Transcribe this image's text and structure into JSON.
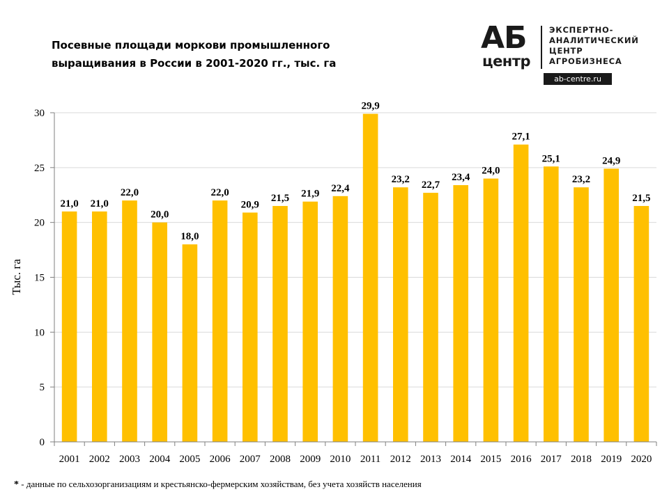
{
  "header": {
    "title_line1": "Посевные площади моркови промышленного",
    "title_line2": "выращивания в России в 2001-2020 гг., тыс. га"
  },
  "logo": {
    "ab": "АБ",
    "centr": "центр",
    "tagline": [
      "ЭКСПЕРТНО-",
      "АНАЛИТИЧЕСКИЙ",
      "ЦЕНТР",
      "АГРОБИЗНЕСА"
    ],
    "site": "ab-centre.ru"
  },
  "footnote": {
    "mark": "*",
    "text": " - данные по сельхозорганизациям и крестьянско-фермерским  хозяйствам, без учета хозяйств населения"
  },
  "chart_data": {
    "type": "bar",
    "title": "Посевные площади моркови промышленного выращивания в России в 2001-2020 гг., тыс. га",
    "ylabel": "Тыс. га",
    "xlabel": "",
    "ylim": [
      0,
      30
    ],
    "yticks": [
      0,
      5,
      10,
      15,
      20,
      25,
      30
    ],
    "grid": true,
    "bar_color": "#FFC000",
    "categories": [
      "2001",
      "2002",
      "2003",
      "2004",
      "2005",
      "2006",
      "2007",
      "2008",
      "2009",
      "2010",
      "2011",
      "2012",
      "2013",
      "2014",
      "2015",
      "2016",
      "2017",
      "2018",
      "2019",
      "2020"
    ],
    "values": [
      21.0,
      21.0,
      22.0,
      20.0,
      18.0,
      22.0,
      20.9,
      21.5,
      21.9,
      22.4,
      29.9,
      23.2,
      22.7,
      23.4,
      24.0,
      27.1,
      25.1,
      23.2,
      24.9,
      21.5
    ],
    "data_labels": [
      "21,0",
      "21,0",
      "22,0",
      "20,0",
      "18,0",
      "22,0",
      "20,9",
      "21,5",
      "21,9",
      "22,4",
      "29,9",
      "23,2",
      "22,7",
      "23,4",
      "24,0",
      "27,1",
      "25,1",
      "23,2",
      "24,9",
      "21,5"
    ]
  }
}
